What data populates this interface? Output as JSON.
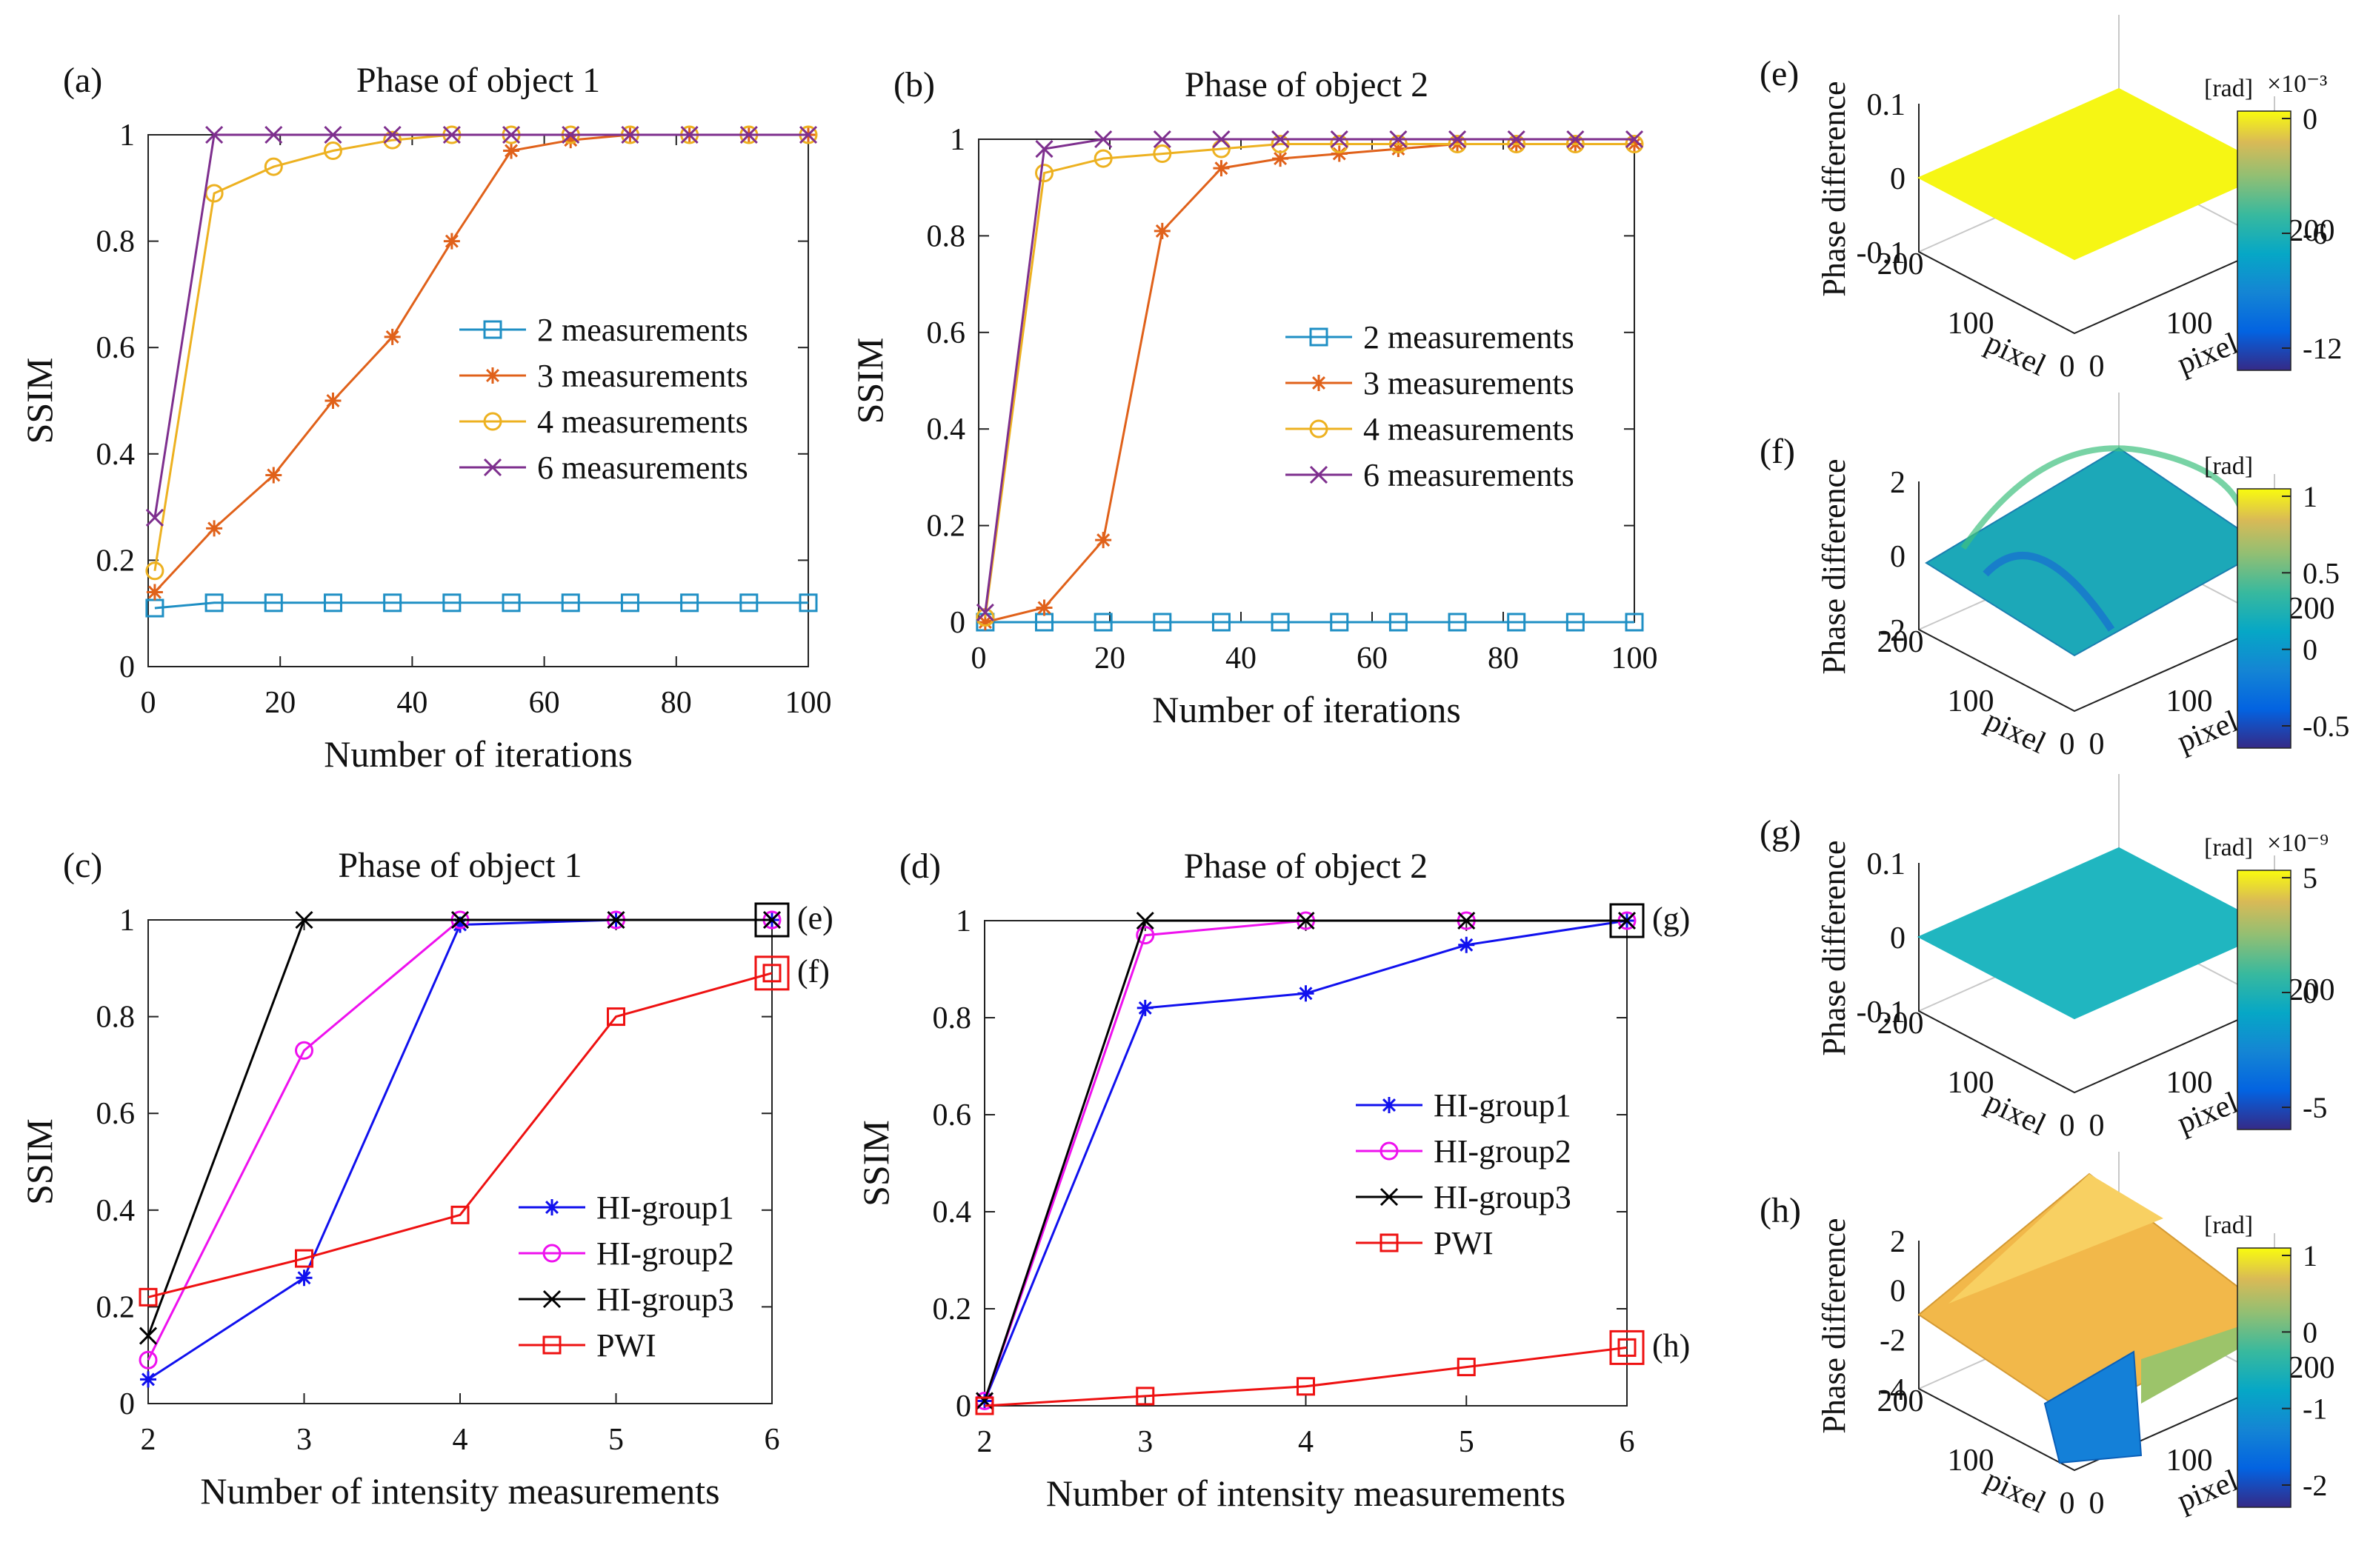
{
  "colors": {
    "blue_light": "#1f8fc4",
    "orange": "#e0611a",
    "yellow": "#edb120",
    "purple": "#7e2f8e",
    "blue": "#1010ee",
    "magenta": "#ee11ee",
    "black": "#000000",
    "red": "#ee1111"
  },
  "chart_data": [
    {
      "id": "a",
      "panel_label": "(a)",
      "type": "line",
      "title": "Phase of object 1",
      "xlabel": "Number of iterations",
      "ylabel": "SSIM",
      "xlim": [
        0,
        100
      ],
      "ylim": [
        0,
        1
      ],
      "xticks": [
        0,
        20,
        40,
        60,
        80,
        100
      ],
      "yticks": [
        0,
        0.2,
        0.4,
        0.6,
        0.8,
        1
      ],
      "xtick_labels": [
        "0",
        "20",
        "40",
        "60",
        "80",
        "100"
      ],
      "ytick_labels": [
        "0",
        "0.2",
        "0.4",
        "0.6",
        "0.8",
        "1"
      ],
      "legend_position": "center-right",
      "series": [
        {
          "name": "2 measurements",
          "color": "#1f8fc4",
          "marker": "square",
          "x": [
            1,
            10,
            19,
            28,
            37,
            46,
            55,
            64,
            73,
            82,
            91,
            100
          ],
          "y": [
            0.11,
            0.12,
            0.12,
            0.12,
            0.12,
            0.12,
            0.12,
            0.12,
            0.12,
            0.12,
            0.12,
            0.12
          ]
        },
        {
          "name": "3 measurements",
          "color": "#e0611a",
          "marker": "star",
          "x": [
            1,
            10,
            19,
            28,
            37,
            46,
            55,
            64,
            73,
            82,
            91,
            100
          ],
          "y": [
            0.14,
            0.26,
            0.36,
            0.5,
            0.62,
            0.8,
            0.97,
            0.99,
            1.0,
            1.0,
            1.0,
            1.0
          ]
        },
        {
          "name": "4 measurements",
          "color": "#edb120",
          "marker": "circle",
          "x": [
            1,
            10,
            19,
            28,
            37,
            46,
            55,
            64,
            73,
            82,
            91,
            100
          ],
          "y": [
            0.18,
            0.89,
            0.94,
            0.97,
            0.99,
            1.0,
            1.0,
            1.0,
            1.0,
            1.0,
            1.0,
            1.0
          ]
        },
        {
          "name": "6 measurements",
          "color": "#7e2f8e",
          "marker": "x",
          "x": [
            1,
            10,
            19,
            28,
            37,
            46,
            55,
            64,
            73,
            82,
            91,
            100
          ],
          "y": [
            0.28,
            1.0,
            1.0,
            1.0,
            1.0,
            1.0,
            1.0,
            1.0,
            1.0,
            1.0,
            1.0,
            1.0
          ]
        }
      ]
    },
    {
      "id": "b",
      "panel_label": "(b)",
      "type": "line",
      "title": "Phase of object 2",
      "xlabel": "Number of iterations",
      "ylabel": "SSIM",
      "xlim": [
        0,
        100
      ],
      "ylim": [
        0,
        1
      ],
      "xticks": [
        0,
        20,
        40,
        60,
        80,
        100
      ],
      "yticks": [
        0,
        0.2,
        0.4,
        0.6,
        0.8,
        1
      ],
      "xtick_labels": [
        "0",
        "20",
        "40",
        "60",
        "80",
        "100"
      ],
      "ytick_labels": [
        "0",
        "0.2",
        "0.4",
        "0.6",
        "0.8",
        "1"
      ],
      "legend_position": "center-right",
      "series": [
        {
          "name": "2 measurements",
          "color": "#1f8fc4",
          "marker": "square",
          "x": [
            1,
            10,
            19,
            28,
            37,
            46,
            55,
            64,
            73,
            82,
            91,
            100
          ],
          "y": [
            0.0,
            0.0,
            0.0,
            0.0,
            0.0,
            0.0,
            0.0,
            0.0,
            0.0,
            0.0,
            0.0,
            0.0
          ]
        },
        {
          "name": "3 measurements",
          "color": "#e0611a",
          "marker": "star",
          "x": [
            1,
            10,
            19,
            28,
            37,
            46,
            55,
            64,
            73,
            82,
            91,
            100
          ],
          "y": [
            0.0,
            0.03,
            0.17,
            0.81,
            0.94,
            0.96,
            0.97,
            0.98,
            0.99,
            0.99,
            0.99,
            0.99
          ]
        },
        {
          "name": "4 measurements",
          "color": "#edb120",
          "marker": "circle",
          "x": [
            1,
            10,
            19,
            28,
            37,
            46,
            55,
            64,
            73,
            82,
            91,
            100
          ],
          "y": [
            0.01,
            0.93,
            0.96,
            0.97,
            0.98,
            0.99,
            0.99,
            0.99,
            0.99,
            0.99,
            0.99,
            0.99
          ]
        },
        {
          "name": "6 measurements",
          "color": "#7e2f8e",
          "marker": "x",
          "x": [
            1,
            10,
            19,
            28,
            37,
            46,
            55,
            64,
            73,
            82,
            91,
            100
          ],
          "y": [
            0.02,
            0.98,
            1.0,
            1.0,
            1.0,
            1.0,
            1.0,
            1.0,
            1.0,
            1.0,
            1.0,
            1.0
          ]
        }
      ]
    },
    {
      "id": "c",
      "panel_label": "(c)",
      "type": "line",
      "title": "Phase of object 1",
      "xlabel": "Number of intensity measurements",
      "ylabel": "SSIM",
      "xlim": [
        2,
        6
      ],
      "ylim": [
        0,
        1
      ],
      "xticks": [
        2,
        3,
        4,
        5,
        6
      ],
      "yticks": [
        0,
        0.2,
        0.4,
        0.6,
        0.8,
        1
      ],
      "xtick_labels": [
        "2",
        "3",
        "4",
        "5",
        "6"
      ],
      "ytick_labels": [
        "0",
        "0.2",
        "0.4",
        "0.6",
        "0.8",
        "1"
      ],
      "legend_position": "bottom-right",
      "callouts": [
        {
          "label": "(e)",
          "x": 6,
          "y": 1.0,
          "color": "#000000"
        },
        {
          "label": "(f)",
          "x": 6,
          "y": 0.89,
          "color": "#ee1111"
        }
      ],
      "series": [
        {
          "name": "HI-group1",
          "color": "#1010ee",
          "marker": "star",
          "x": [
            2,
            3,
            4,
            5,
            6
          ],
          "y": [
            0.05,
            0.26,
            0.99,
            1.0,
            1.0
          ]
        },
        {
          "name": "HI-group2",
          "color": "#ee11ee",
          "marker": "circle",
          "x": [
            2,
            3,
            4,
            5,
            6
          ],
          "y": [
            0.09,
            0.73,
            1.0,
            1.0,
            1.0
          ]
        },
        {
          "name": "HI-group3",
          "color": "#000000",
          "marker": "x",
          "x": [
            2,
            3,
            4,
            5,
            6
          ],
          "y": [
            0.14,
            1.0,
            1.0,
            1.0,
            1.0
          ]
        },
        {
          "name": "PWI",
          "color": "#ee1111",
          "marker": "square",
          "x": [
            2,
            3,
            4,
            5,
            6
          ],
          "y": [
            0.22,
            0.3,
            0.39,
            0.8,
            0.89
          ]
        }
      ]
    },
    {
      "id": "d",
      "panel_label": "(d)",
      "type": "line",
      "title": "Phase of object 2",
      "xlabel": "Number of intensity measurements",
      "ylabel": "SSIM",
      "xlim": [
        2,
        6
      ],
      "ylim": [
        0,
        1
      ],
      "xticks": [
        2,
        3,
        4,
        5,
        6
      ],
      "yticks": [
        0,
        0.2,
        0.4,
        0.6,
        0.8,
        1
      ],
      "xtick_labels": [
        "2",
        "3",
        "4",
        "5",
        "6"
      ],
      "ytick_labels": [
        "0",
        "0.2",
        "0.4",
        "0.6",
        "0.8",
        "1"
      ],
      "legend_position": "center-right",
      "callouts": [
        {
          "label": "(g)",
          "x": 6,
          "y": 1.0,
          "color": "#000000"
        },
        {
          "label": "(h)",
          "x": 6,
          "y": 0.12,
          "color": "#ee1111"
        }
      ],
      "series": [
        {
          "name": "HI-group1",
          "color": "#1010ee",
          "marker": "star",
          "x": [
            2,
            3,
            4,
            5,
            6
          ],
          "y": [
            0.01,
            0.82,
            0.85,
            0.95,
            1.0
          ]
        },
        {
          "name": "HI-group2",
          "color": "#ee11ee",
          "marker": "circle",
          "x": [
            2,
            3,
            4,
            5,
            6
          ],
          "y": [
            0.01,
            0.97,
            1.0,
            1.0,
            1.0
          ]
        },
        {
          "name": "HI-group3",
          "color": "#000000",
          "marker": "x",
          "x": [
            2,
            3,
            4,
            5,
            6
          ],
          "y": [
            0.01,
            1.0,
            1.0,
            1.0,
            1.0
          ]
        },
        {
          "name": "PWI",
          "color": "#ee1111",
          "marker": "square",
          "x": [
            2,
            3,
            4,
            5,
            6
          ],
          "y": [
            0.0,
            0.02,
            0.04,
            0.08,
            0.12
          ]
        }
      ]
    }
  ],
  "surface_panels": [
    {
      "id": "e",
      "panel_label": "(e)",
      "type": "surface",
      "zlabel": "Phase difference",
      "x_axis_label": "pixel",
      "y_axis_label": "pixel",
      "z_ticks": [
        "0.1",
        "0",
        "-0.1"
      ],
      "base_ticks": {
        "left_200": "200",
        "left_100": "100",
        "left_0": "0",
        "right_0": "0",
        "right_100": "100",
        "right_200": "200"
      },
      "colorbar_unit": "[rad]",
      "colorbar_exponent": "×10⁻³",
      "colorbar_ticks": [
        "0",
        "-6",
        "-12"
      ],
      "surface_color": "#f6f614"
    },
    {
      "id": "f",
      "panel_label": "(f)",
      "type": "surface",
      "zlabel": "Phase difference",
      "x_axis_label": "pixel",
      "y_axis_label": "pixel",
      "z_ticks": [
        "2",
        "0",
        "-2"
      ],
      "base_ticks": {
        "left_200": "200",
        "left_100": "100",
        "left_0": "0",
        "right_0": "0",
        "right_100": "100",
        "right_200": "200"
      },
      "colorbar_unit": "[rad]",
      "colorbar_exponent": "",
      "colorbar_ticks": [
        "1",
        "0.5",
        "0",
        "-0.5"
      ],
      "surface_color": "#1ca8b8"
    },
    {
      "id": "g",
      "panel_label": "(g)",
      "type": "surface",
      "zlabel": "Phase difference",
      "x_axis_label": "pixel",
      "y_axis_label": "pixel",
      "z_ticks": [
        "0.1",
        "0",
        "-0.1"
      ],
      "base_ticks": {
        "left_200": "200",
        "left_100": "100",
        "left_0": "0",
        "right_0": "0",
        "right_100": "100",
        "right_200": "200"
      },
      "colorbar_unit": "[rad]",
      "colorbar_exponent": "×10⁻⁹",
      "colorbar_ticks": [
        "5",
        "0",
        "-5"
      ],
      "surface_color": "#20b6c0"
    },
    {
      "id": "h",
      "panel_label": "(h)",
      "type": "surface",
      "zlabel": "Phase difference",
      "x_axis_label": "pixel",
      "y_axis_label": "pixel",
      "z_ticks": [
        "2",
        "0",
        "-2",
        "-4"
      ],
      "base_ticks": {
        "left_200": "200",
        "left_100": "100",
        "left_0": "0",
        "right_0": "0",
        "right_100": "100",
        "right_200": "200"
      },
      "colorbar_unit": "[rad]",
      "colorbar_exponent": "",
      "colorbar_ticks": [
        "1",
        "0",
        "-1",
        "-2"
      ],
      "surface_color": "#f2b84a"
    }
  ]
}
